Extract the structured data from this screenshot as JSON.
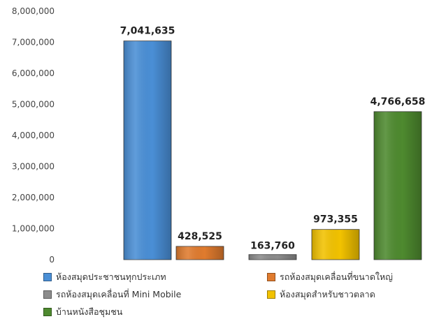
{
  "chart_data": {
    "type": "bar",
    "categories": [
      "ห้องสมุดประชาชนทุกประเภท",
      "รถห้องสมุดเคลื่อนที่ขนาดใหญ่",
      "รถห้องสมุดเคลื่อนที่ Mini Mobile",
      "ห้องสมุดสำหรับชาวตลาด",
      "บ้านหนังสือชุมชน"
    ],
    "values": [
      7041635,
      428525,
      163760,
      973355,
      4766658
    ],
    "value_labels": [
      "7,041,635",
      "428,525",
      "163,760",
      "973,355",
      "4,766,658"
    ],
    "colors": [
      "#4a8fd6",
      "#e07b2e",
      "#8c8c8c",
      "#f2c200",
      "#4e8a2f"
    ],
    "ylim": [
      0,
      8000000
    ],
    "yticks": [
      0,
      1000000,
      2000000,
      3000000,
      4000000,
      5000000,
      6000000,
      7000000,
      8000000
    ],
    "ytick_labels": [
      "0",
      "1,000,000",
      "2,000,000",
      "3,000,000",
      "4,000,000",
      "5,000,000",
      "6,000,000",
      "7,000,000",
      "8,000,000"
    ],
    "grid": false,
    "legend_position": "bottom"
  }
}
